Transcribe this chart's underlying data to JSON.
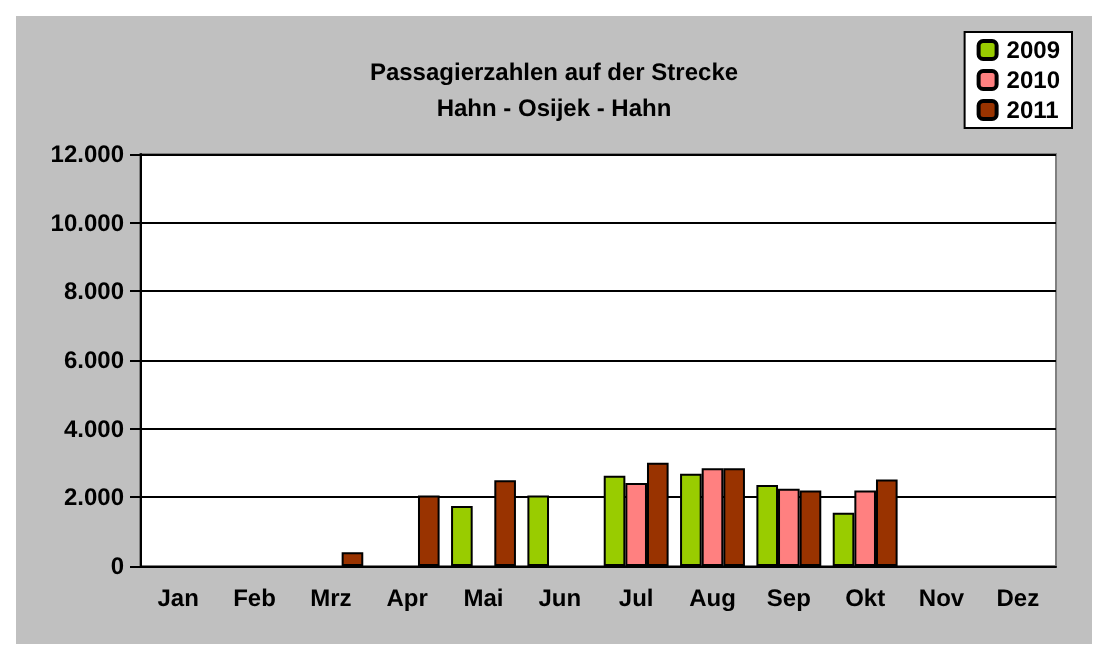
{
  "chart_data": {
    "type": "bar",
    "title": "Passagierzahlen auf der Strecke\nHahn - Osijek - Hahn",
    "categories": [
      "Jan",
      "Feb",
      "Mrz",
      "Apr",
      "Mai",
      "Jun",
      "Jul",
      "Aug",
      "Sep",
      "Okt",
      "Nov",
      "Dez"
    ],
    "series": [
      {
        "name": "2009",
        "color": "#99cc00",
        "values": [
          null,
          null,
          null,
          null,
          1750,
          2050,
          2630,
          2690,
          2360,
          1550,
          null,
          null
        ]
      },
      {
        "name": "2010",
        "color": "#ff8080",
        "values": [
          null,
          null,
          null,
          null,
          null,
          null,
          2420,
          2850,
          2250,
          2200,
          null,
          null
        ]
      },
      {
        "name": "2011",
        "color": "#993300",
        "values": [
          null,
          null,
          400,
          2050,
          2500,
          null,
          3010,
          2850,
          2200,
          2520,
          null,
          null
        ]
      }
    ],
    "ylim": [
      0,
      12000
    ],
    "yticks": [
      {
        "value": 0,
        "label": "0"
      },
      {
        "value": 2000,
        "label": "2.000"
      },
      {
        "value": 4000,
        "label": "4.000"
      },
      {
        "value": 6000,
        "label": "6.000"
      },
      {
        "value": 8000,
        "label": "8.000"
      },
      {
        "value": 10000,
        "label": "10.000"
      },
      {
        "value": 12000,
        "label": "12.000"
      }
    ],
    "grid": "y",
    "legend": "top right"
  }
}
